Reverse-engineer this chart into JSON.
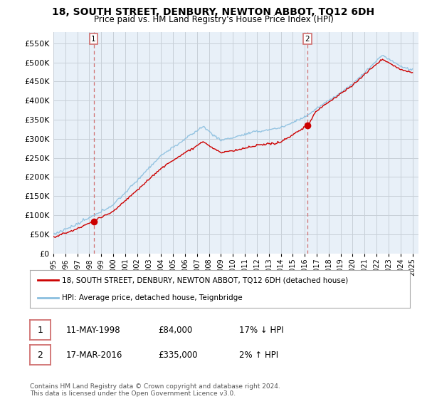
{
  "title": "18, SOUTH STREET, DENBURY, NEWTON ABBOT, TQ12 6DH",
  "subtitle": "Price paid vs. HM Land Registry's House Price Index (HPI)",
  "legend_line1": "18, SOUTH STREET, DENBURY, NEWTON ABBOT, TQ12 6DH (detached house)",
  "legend_line2": "HPI: Average price, detached house, Teignbridge",
  "sale1_label": "1",
  "sale1_date": "11-MAY-1998",
  "sale1_price": "£84,000",
  "sale1_hpi": "17% ↓ HPI",
  "sale1_year": 1998.36,
  "sale1_value": 84000,
  "sale2_label": "2",
  "sale2_date": "17-MAR-2016",
  "sale2_price": "£335,000",
  "sale2_hpi": "2% ↑ HPI",
  "sale2_year": 2016.21,
  "sale2_value": 335000,
  "hpi_color": "#8bbfdf",
  "price_color": "#cc0000",
  "marker_color": "#cc0000",
  "vline_color": "#d07070",
  "background_color": "#e8f0f8",
  "grid_color": "#c8d0d8",
  "ylim_min": 0,
  "ylim_max": 580000,
  "xlim_min": 1995.0,
  "xlim_max": 2025.5,
  "footer": "Contains HM Land Registry data © Crown copyright and database right 2024.\nThis data is licensed under the Open Government Licence v3.0.",
  "yticks": [
    0,
    50000,
    100000,
    150000,
    200000,
    250000,
    300000,
    350000,
    400000,
    450000,
    500000,
    550000
  ],
  "xtick_years": [
    1995,
    1996,
    1997,
    1998,
    1999,
    2000,
    2001,
    2002,
    2003,
    2004,
    2005,
    2006,
    2007,
    2008,
    2009,
    2010,
    2011,
    2012,
    2013,
    2014,
    2015,
    2016,
    2017,
    2018,
    2019,
    2020,
    2021,
    2022,
    2023,
    2024,
    2025
  ]
}
